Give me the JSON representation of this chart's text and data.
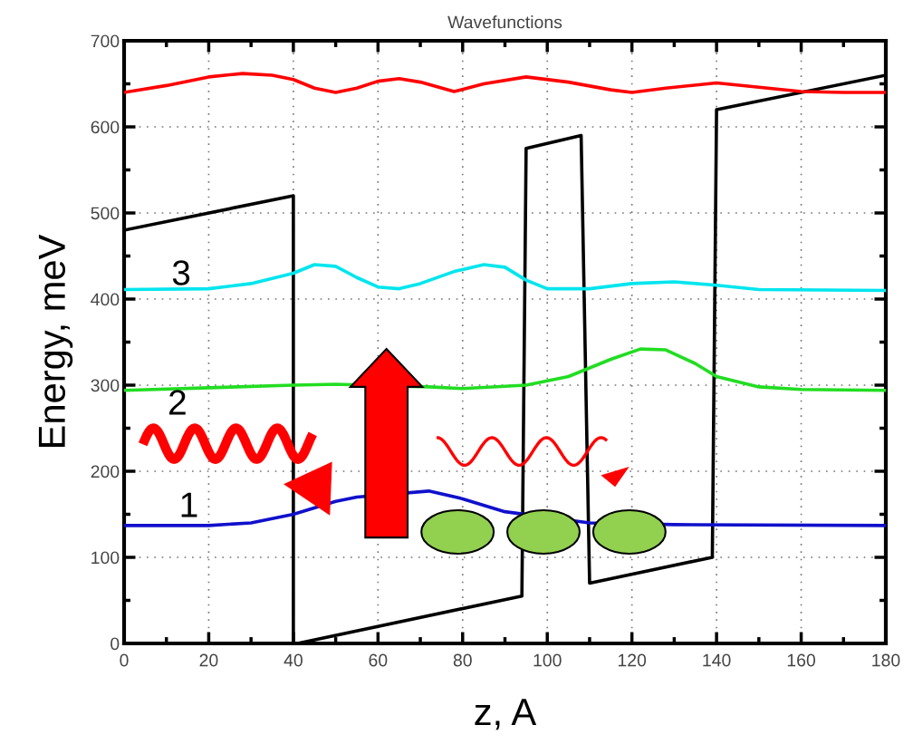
{
  "chart_data": {
    "type": "line",
    "title": "Wavefunctions",
    "xlabel": "z, A",
    "ylabel": "Energy, meV",
    "xlim": [
      0,
      180
    ],
    "xticks": [
      0,
      20,
      40,
      60,
      80,
      100,
      120,
      140,
      160,
      180
    ],
    "ylim": [
      0,
      700
    ],
    "yticks": [
      0,
      100,
      200,
      300,
      400,
      500,
      600,
      700
    ],
    "grid": true,
    "marker": "none",
    "line_style": "solid",
    "series": [
      {
        "color": "#000000",
        "x": [
          0,
          40,
          40,
          41,
          94,
          95,
          108,
          110,
          139,
          140,
          180
        ],
        "values": [
          480,
          520,
          0,
          0,
          55,
          575,
          590,
          70,
          100,
          620,
          660
        ]
      },
      {
        "color": "#ff0000",
        "x": [
          0,
          10,
          20,
          28,
          35,
          40,
          45,
          50,
          55,
          60,
          65,
          70,
          78,
          85,
          95,
          105,
          115,
          120,
          128,
          140,
          150,
          160,
          170,
          180
        ],
        "values": [
          640,
          648,
          658,
          662,
          660,
          655,
          645,
          640,
          645,
          653,
          656,
          652,
          641,
          650,
          658,
          652,
          643,
          640,
          645,
          651,
          646,
          641,
          640,
          640
        ]
      },
      {
        "color": "#00e5ee",
        "x": [
          0,
          20,
          30,
          40,
          45,
          50,
          55,
          60,
          65,
          70,
          78,
          85,
          90,
          95,
          100,
          110,
          120,
          130,
          140,
          150,
          180
        ],
        "values": [
          411,
          412,
          418,
          430,
          440,
          438,
          425,
          414,
          412,
          418,
          432,
          440,
          437,
          422,
          412,
          412,
          418,
          420,
          416,
          411,
          410
        ]
      },
      {
        "color": "#22dd22",
        "x": [
          0,
          20,
          40,
          50,
          72,
          80,
          95,
          105,
          115,
          122,
          128,
          135,
          140,
          150,
          160,
          180
        ],
        "values": [
          294,
          297,
          300,
          301,
          298,
          296,
          300,
          310,
          330,
          342,
          341,
          325,
          310,
          298,
          295,
          294
        ]
      },
      {
        "color": "#1010cc",
        "x": [
          0,
          20,
          30,
          40,
          50,
          55,
          72,
          80,
          90,
          110,
          130,
          180
        ],
        "values": [
          137,
          137,
          140,
          150,
          165,
          170,
          177,
          168,
          153,
          140,
          138,
          137
        ]
      }
    ],
    "annotations": [
      "3",
      "2",
      "1"
    ]
  }
}
